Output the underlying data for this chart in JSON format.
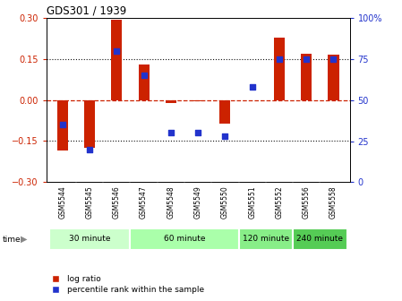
{
  "title": "GDS301 / 1939",
  "samples": [
    "GSM5544",
    "GSM5545",
    "GSM5546",
    "GSM5547",
    "GSM5548",
    "GSM5549",
    "GSM5550",
    "GSM5551",
    "GSM5552",
    "GSM5556",
    "GSM5558"
  ],
  "log_ratio": [
    -0.185,
    -0.175,
    0.295,
    0.13,
    -0.01,
    -0.005,
    -0.085,
    0.0,
    0.23,
    0.17,
    0.165
  ],
  "percentile": [
    35,
    20,
    80,
    65,
    30,
    30,
    28,
    58,
    75,
    75,
    75
  ],
  "groups": [
    {
      "label": "30 minute",
      "indices": [
        0,
        1,
        2
      ]
    },
    {
      "label": "60 minute",
      "indices": [
        3,
        4,
        5,
        6
      ]
    },
    {
      "label": "120 minute",
      "indices": [
        7,
        8
      ]
    },
    {
      "label": "240 minute",
      "indices": [
        9,
        10
      ]
    }
  ],
  "ylim_left": [
    -0.3,
    0.3
  ],
  "ylim_right": [
    0,
    100
  ],
  "yticks_left": [
    -0.3,
    -0.15,
    0.0,
    0.15,
    0.3
  ],
  "yticks_right": [
    0,
    25,
    50,
    75,
    100
  ],
  "bar_color": "#cc2200",
  "dot_color": "#2233cc",
  "hline_color": "#cc2200",
  "dotted_color": "#111111",
  "group_colors": [
    "#ccffcc",
    "#aaffaa",
    "#88ee88",
    "#55cc55"
  ],
  "label_bg": "#cccccc",
  "bar_width": 0.4
}
